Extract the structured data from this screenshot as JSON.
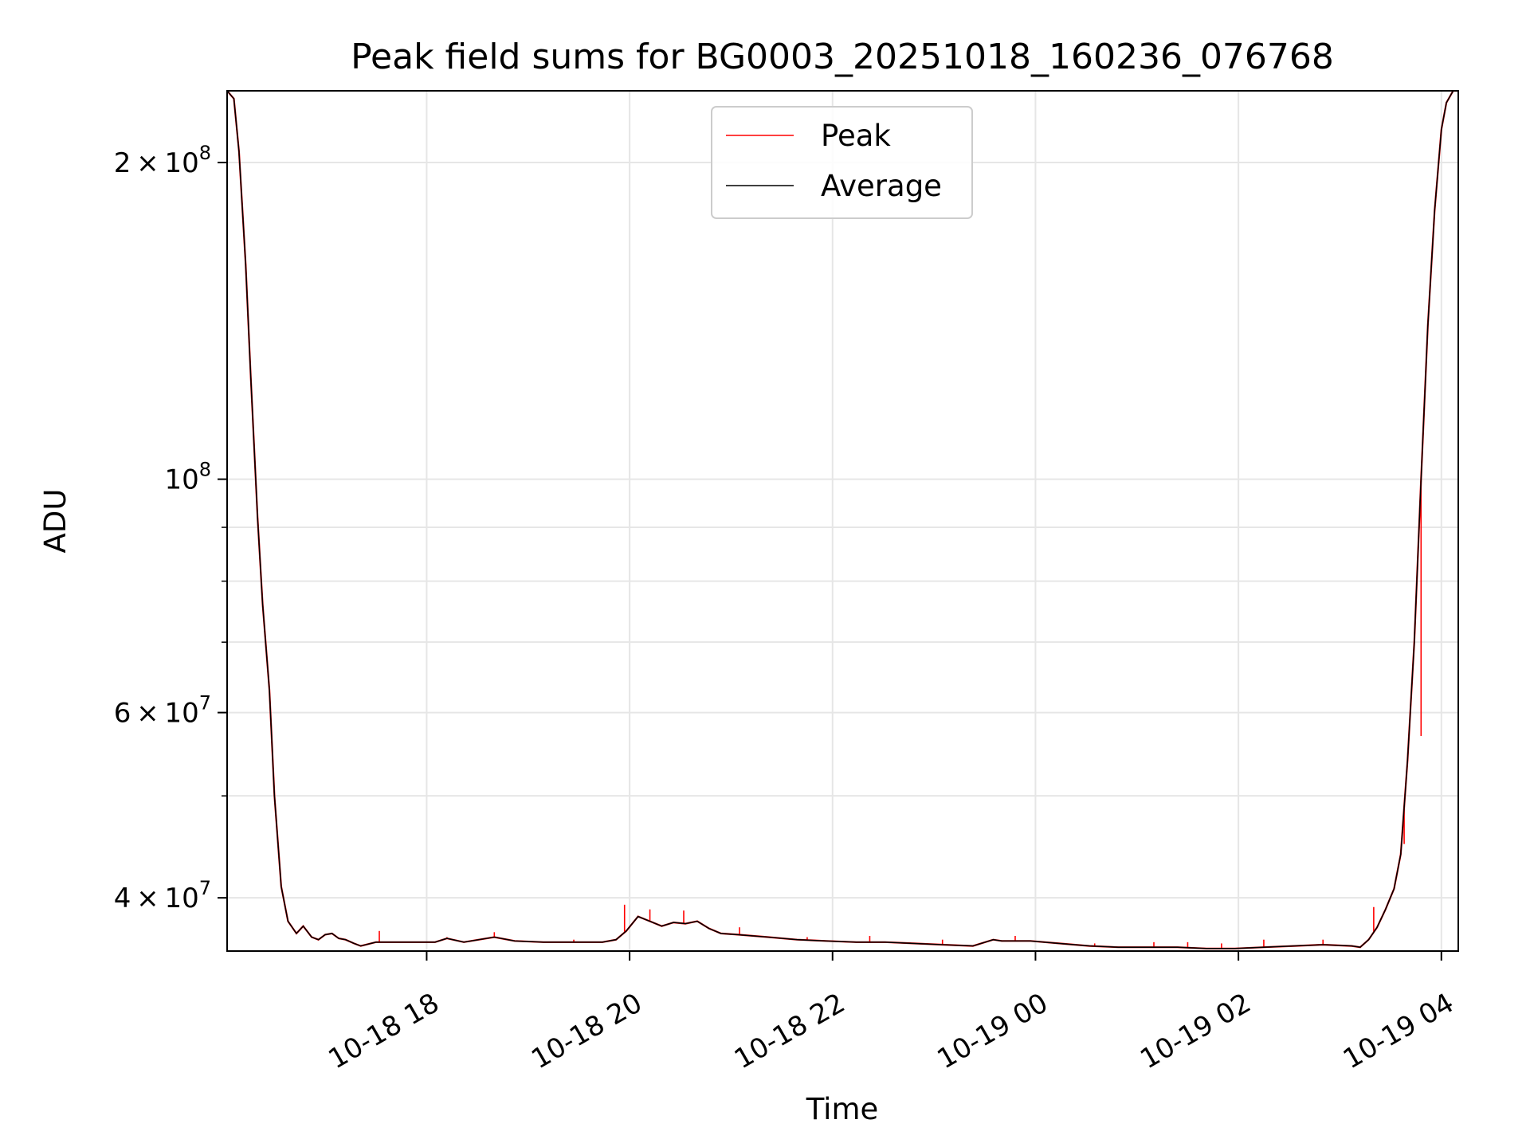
{
  "chart_data": {
    "type": "line",
    "title": "Peak field sums for BG0003_20251018_160236_076768",
    "xlabel": "Time",
    "ylabel": "ADU",
    "y_scale": "log",
    "ylim": [
      35600000,
      234000000
    ],
    "xlim": [
      "2025-10-18 16:02",
      "2025-10-19 04:10"
    ],
    "grid": true,
    "legend_position": "top-center",
    "x_tick_labels": [
      "10-18 18",
      "10-18 20",
      "10-18 22",
      "10-19 00",
      "10-19 02",
      "10-19 04"
    ],
    "x_tick_values": [
      "2025-10-18 18:00",
      "2025-10-18 20:00",
      "2025-10-18 22:00",
      "2025-10-19 00:00",
      "2025-10-19 02:00",
      "2025-10-19 04:00"
    ],
    "y_major_ticks": [
      {
        "value": 200000000,
        "mantissa": "2",
        "exponent": "8"
      },
      {
        "value": 100000000,
        "mantissa": "",
        "exponent": "8"
      },
      {
        "value": 60000000,
        "mantissa": "6",
        "exponent": "7"
      },
      {
        "value": 40000000,
        "mantissa": "4",
        "exponent": "7"
      }
    ],
    "y_minor_ticks": [
      90000000,
      80000000,
      70000000,
      50000000
    ],
    "series": [
      {
        "name": "Peak",
        "color": "#ff0000",
        "spikes": [
          {
            "x": "2025-10-18 17:32",
            "y": 37200000
          },
          {
            "x": "2025-10-18 18:12",
            "y": 36700000
          },
          {
            "x": "2025-10-18 18:40",
            "y": 37100000
          },
          {
            "x": "2025-10-18 19:27",
            "y": 36500000
          },
          {
            "x": "2025-10-18 19:57",
            "y": 39400000
          },
          {
            "x": "2025-10-18 20:12",
            "y": 39000000
          },
          {
            "x": "2025-10-18 20:32",
            "y": 38900000
          },
          {
            "x": "2025-10-18 21:05",
            "y": 37500000
          },
          {
            "x": "2025-10-18 21:45",
            "y": 36700000
          },
          {
            "x": "2025-10-18 22:22",
            "y": 36800000
          },
          {
            "x": "2025-10-18 23:05",
            "y": 36500000
          },
          {
            "x": "2025-10-18 23:48",
            "y": 36800000
          },
          {
            "x": "2025-10-19 00:35",
            "y": 36200000
          },
          {
            "x": "2025-10-19 01:10",
            "y": 36300000
          },
          {
            "x": "2025-10-19 01:30",
            "y": 36300000
          },
          {
            "x": "2025-10-19 01:50",
            "y": 36200000
          },
          {
            "x": "2025-10-19 02:15",
            "y": 36500000
          },
          {
            "x": "2025-10-19 02:50",
            "y": 36500000
          },
          {
            "x": "2025-10-19 03:20",
            "y": 39200000
          },
          {
            "x": "2025-10-19 03:38",
            "y": 45000000
          },
          {
            "x": "2025-10-19 03:48",
            "y": 57000000
          }
        ]
      },
      {
        "name": "Average",
        "color": "#000000",
        "x": [
          "2025-10-18 16:02",
          "2025-10-18 16:06",
          "2025-10-18 16:09",
          "2025-10-18 16:13",
          "2025-10-18 16:16",
          "2025-10-18 16:20",
          "2025-10-18 16:23",
          "2025-10-18 16:27",
          "2025-10-18 16:30",
          "2025-10-18 16:34",
          "2025-10-18 16:38",
          "2025-10-18 16:43",
          "2025-10-18 16:47",
          "2025-10-18 16:52",
          "2025-10-18 16:56",
          "2025-10-18 17:00",
          "2025-10-18 17:04",
          "2025-10-18 17:08",
          "2025-10-18 17:12",
          "2025-10-18 17:17",
          "2025-10-18 17:21",
          "2025-10-18 17:30",
          "2025-10-18 17:47",
          "2025-10-18 18:05",
          "2025-10-18 18:12",
          "2025-10-18 18:22",
          "2025-10-18 18:40",
          "2025-10-18 18:52",
          "2025-10-18 19:09",
          "2025-10-18 19:27",
          "2025-10-18 19:44",
          "2025-10-18 19:52",
          "2025-10-18 19:58",
          "2025-10-18 20:05",
          "2025-10-18 20:12",
          "2025-10-18 20:19",
          "2025-10-18 20:26",
          "2025-10-18 20:33",
          "2025-10-18 20:40",
          "2025-10-18 20:47",
          "2025-10-18 20:54",
          "2025-10-18 21:04",
          "2025-10-18 21:22",
          "2025-10-18 21:39",
          "2025-10-18 21:56",
          "2025-10-18 22:14",
          "2025-10-18 22:31",
          "2025-10-18 22:48",
          "2025-10-18 23:05",
          "2025-10-18 23:23",
          "2025-10-18 23:35",
          "2025-10-18 23:40",
          "2025-10-18 23:57",
          "2025-10-19 00:14",
          "2025-10-19 00:32",
          "2025-10-19 00:49",
          "2025-10-19 01:06",
          "2025-10-19 01:24",
          "2025-10-19 01:41",
          "2025-10-19 01:58",
          "2025-10-19 02:15",
          "2025-10-19 02:33",
          "2025-10-19 02:50",
          "2025-10-19 03:07",
          "2025-10-19 03:12",
          "2025-10-19 03:17",
          "2025-10-19 03:22",
          "2025-10-19 03:27",
          "2025-10-19 03:32",
          "2025-10-19 03:36",
          "2025-10-19 03:40",
          "2025-10-19 03:44",
          "2025-10-19 03:48",
          "2025-10-19 03:52",
          "2025-10-19 03:56",
          "2025-10-19 04:00",
          "2025-10-19 04:03",
          "2025-10-19 04:07",
          "2025-10-19 04:10"
        ],
        "values": [
          234000000,
          230000000,
          205000000,
          160000000,
          125000000,
          92000000,
          76000000,
          63000000,
          50000000,
          41000000,
          38000000,
          37000000,
          37600000,
          36700000,
          36500000,
          36900000,
          37000000,
          36600000,
          36500000,
          36200000,
          36000000,
          36300000,
          36300000,
          36300000,
          36600000,
          36300000,
          36700000,
          36400000,
          36300000,
          36300000,
          36300000,
          36500000,
          37200000,
          38400000,
          38000000,
          37600000,
          37900000,
          37800000,
          38000000,
          37400000,
          37000000,
          36900000,
          36700000,
          36500000,
          36400000,
          36300000,
          36300000,
          36200000,
          36100000,
          36000000,
          36500000,
          36400000,
          36400000,
          36200000,
          36000000,
          35900000,
          35900000,
          35900000,
          35800000,
          35800000,
          35900000,
          36000000,
          36100000,
          36000000,
          35900000,
          36500000,
          37500000,
          39000000,
          40800000,
          44000000,
          54000000,
          70000000,
          100000000,
          140000000,
          180000000,
          215000000,
          228000000,
          234000000,
          234000000
        ]
      }
    ]
  }
}
